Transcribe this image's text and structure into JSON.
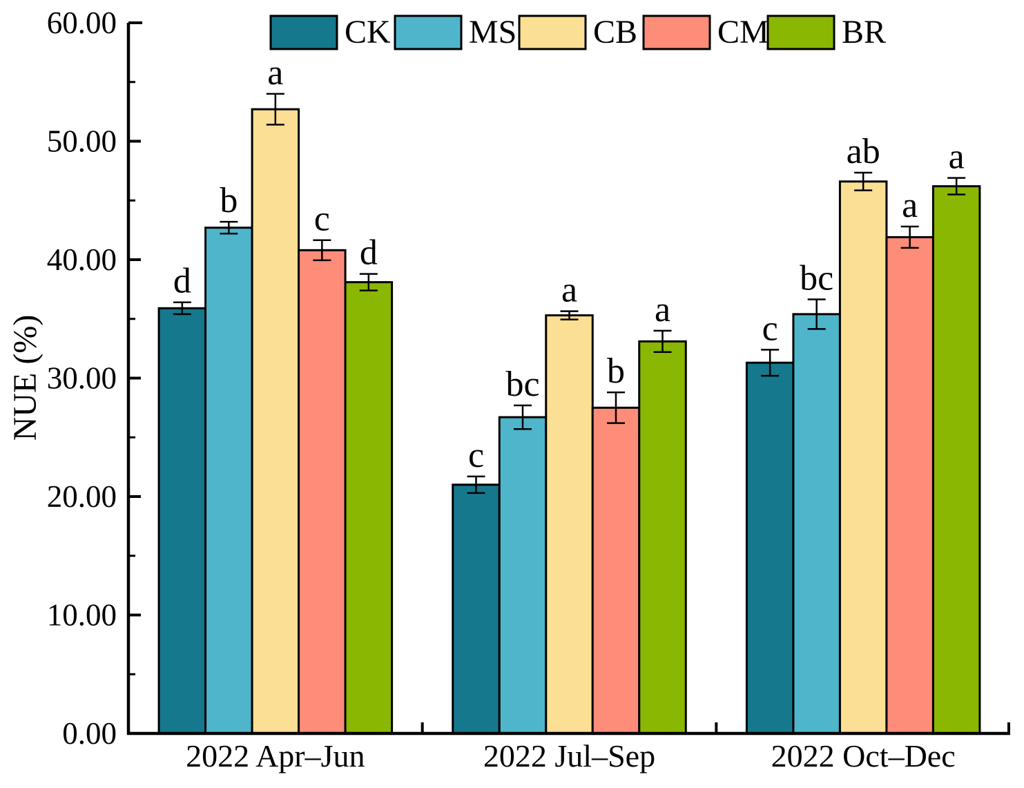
{
  "figure": {
    "background": "#ffffff",
    "axis_color": "#000000"
  },
  "chart_data": {
    "type": "bar",
    "title": "",
    "xlabel": "",
    "ylabel": "NUE (%)",
    "ylim": [
      0,
      60
    ],
    "y_major_step": 10,
    "y_minor_step": 5,
    "y_tick_labels": [
      "0.00",
      "10.00",
      "20.00",
      "30.00",
      "40.00",
      "50.00",
      "60.00"
    ],
    "grid": false,
    "legend_position": "top-center",
    "categories": [
      "2022 Apr–Jun",
      "2022 Jul–Sep",
      "2022 Oct–Dec"
    ],
    "series": [
      {
        "name": "CK",
        "color": "#16788d",
        "values": [
          35.9,
          21.0,
          31.3
        ],
        "errors": [
          0.5,
          0.7,
          1.1
        ],
        "sig_letters": [
          "d",
          "c",
          "c"
        ]
      },
      {
        "name": "MS",
        "color": "#4fb5cb",
        "values": [
          42.7,
          26.7,
          35.4
        ],
        "errors": [
          0.5,
          1.0,
          1.25
        ],
        "sig_letters": [
          "b",
          "bc",
          "bc"
        ]
      },
      {
        "name": "CB",
        "color": "#fbdf94",
        "values": [
          52.7,
          35.3,
          46.6
        ],
        "errors": [
          1.3,
          0.35,
          0.75
        ],
        "sig_letters": [
          "a",
          "a",
          "ab"
        ]
      },
      {
        "name": "CM",
        "color": "#fd8c79",
        "values": [
          40.8,
          27.5,
          41.9
        ],
        "errors": [
          0.85,
          1.3,
          0.9
        ],
        "sig_letters": [
          "c",
          "b",
          "a"
        ]
      },
      {
        "name": "BR",
        "color": "#8ab702",
        "values": [
          38.1,
          33.1,
          46.2
        ],
        "errors": [
          0.7,
          0.9,
          0.7
        ],
        "sig_letters": [
          "d",
          "a",
          "a"
        ]
      }
    ]
  }
}
